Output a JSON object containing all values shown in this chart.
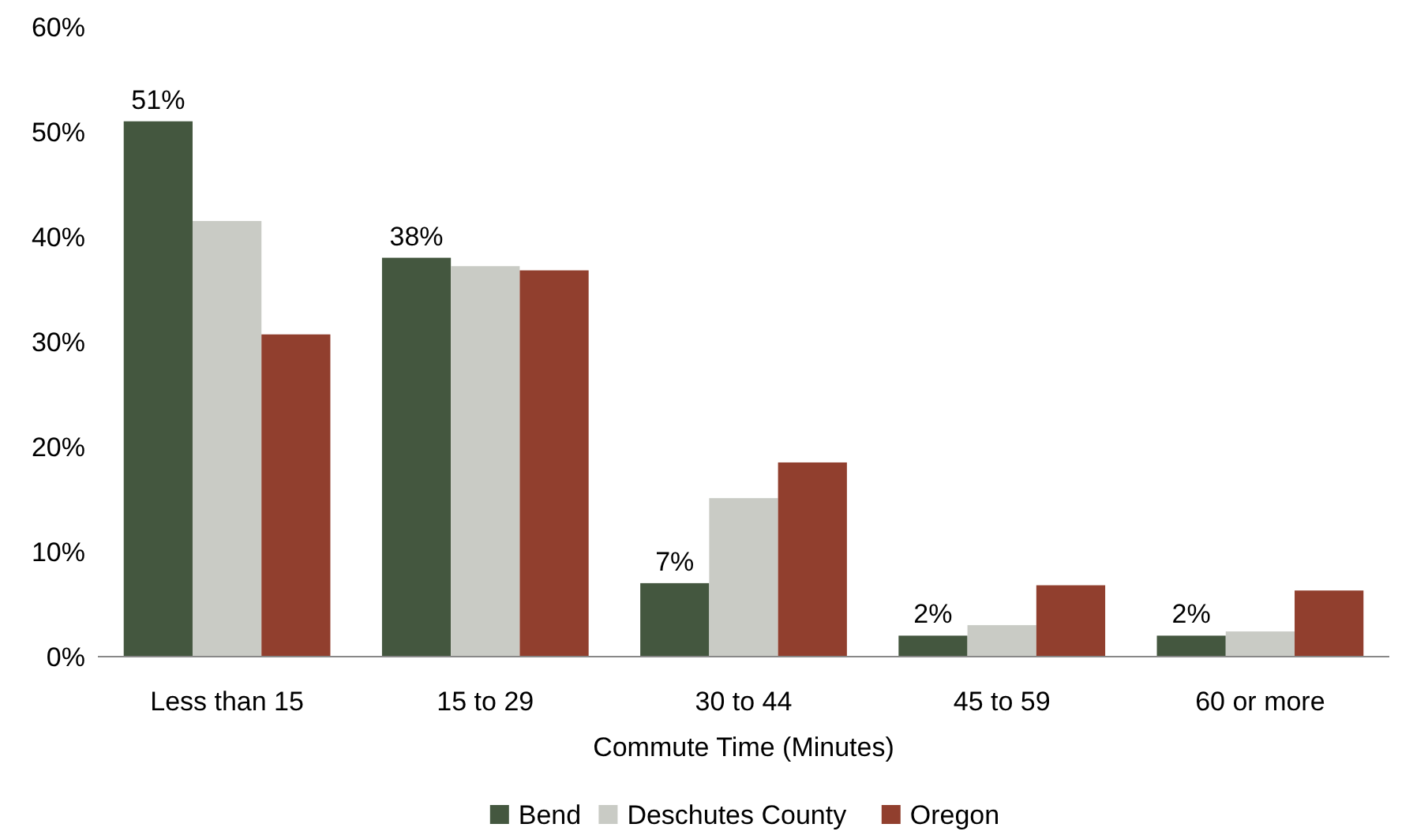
{
  "chart_data": {
    "type": "bar",
    "xlabel": "Commute Time (Minutes)",
    "categories": [
      "Less than 15",
      "15 to 29",
      "30 to 44",
      "45 to 59",
      "60 or more"
    ],
    "series": [
      {
        "name": "Bend",
        "color": "#44573f",
        "values": [
          51,
          38,
          7,
          2,
          2
        ],
        "value_labels": [
          "51%",
          "38%",
          "7%",
          "2%",
          "2%"
        ]
      },
      {
        "name": "Deschutes County",
        "color": "#c9cbc5",
        "values": [
          41.5,
          37.2,
          15.1,
          3.0,
          2.4
        ]
      },
      {
        "name": "Oregon",
        "color": "#913f2e",
        "values": [
          30.7,
          36.8,
          18.5,
          6.8,
          6.3
        ]
      }
    ],
    "ylim": [
      0,
      60
    ],
    "yticks": [
      {
        "value": 0,
        "label": "0%"
      },
      {
        "value": 10,
        "label": "10%"
      },
      {
        "value": 20,
        "label": "20%"
      },
      {
        "value": 30,
        "label": "30%"
      },
      {
        "value": 40,
        "label": "40%"
      },
      {
        "value": 50,
        "label": "50%"
      },
      {
        "value": 60,
        "label": "60%"
      }
    ],
    "grid": false,
    "legend": "bottom"
  }
}
